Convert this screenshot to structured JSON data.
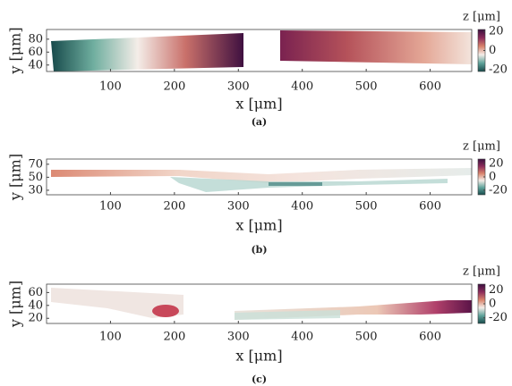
{
  "chart_data": [
    {
      "type": "heatmap",
      "caption": "(a)",
      "xlabel": "x [μm]",
      "ylabel": "y [μm]",
      "colorbar_label": "z [μm]",
      "xlim": [
        0,
        665
      ],
      "xticks": [
        100,
        200,
        300,
        400,
        500,
        600
      ],
      "ylim": [
        30,
        95
      ],
      "yticks": [
        40,
        60,
        80
      ],
      "clim": [
        -22,
        22
      ],
      "cticks": [
        -20,
        0,
        20
      ],
      "colormap": [
        "#174a4b",
        "#5fa39b",
        "#f4ede8",
        "#d9826a",
        "#8c2b5b",
        "#3a0f3f"
      ]
    },
    {
      "type": "heatmap",
      "caption": "(b)",
      "xlabel": "x [μm]",
      "ylabel": "y [μm]",
      "colorbar_label": "z [μm]",
      "xlim": [
        0,
        665
      ],
      "xticks": [
        100,
        200,
        300,
        400,
        500,
        600
      ],
      "ylim": [
        23,
        78
      ],
      "yticks": [
        30,
        50,
        70
      ],
      "clim": [
        -27,
        27
      ],
      "cticks": [
        -20,
        0,
        20
      ],
      "colormap": [
        "#174a4b",
        "#5fa39b",
        "#f4ede8",
        "#d9826a",
        "#8c2b5b",
        "#3a0f3f"
      ]
    },
    {
      "type": "heatmap",
      "caption": "(c)",
      "xlabel": "x [μm]",
      "ylabel": "y [μm]",
      "colorbar_label": "z [μm]",
      "xlim": [
        0,
        665
      ],
      "xticks": [
        100,
        200,
        300,
        400,
        500,
        600
      ],
      "ylim": [
        12,
        73
      ],
      "yticks": [
        20,
        40,
        60
      ],
      "clim": [
        -28,
        28
      ],
      "cticks": [
        -20,
        0,
        20
      ],
      "colormap": [
        "#174a4b",
        "#5fa39b",
        "#f4ede8",
        "#d9826a",
        "#8c2b5b",
        "#3a0f3f"
      ]
    }
  ]
}
